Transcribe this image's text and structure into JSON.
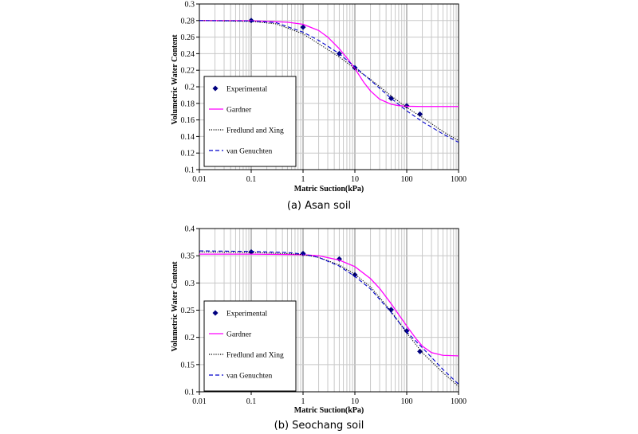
{
  "chart_data": [
    {
      "type": "line",
      "caption": "(a) Asan soil",
      "xlabel": "Matric Suction(kPa)",
      "ylabel": "Volumetric Water Content",
      "xscale": "log",
      "xlim": [
        0.01,
        1000
      ],
      "ylim": [
        0.1,
        0.3
      ],
      "xticks": [
        "0.01",
        "0.1",
        "1",
        "10",
        "100",
        "1000"
      ],
      "yticks": [
        "0.1",
        "0.12",
        "0.14",
        "0.16",
        "0.18",
        "0.2",
        "0.22",
        "0.24",
        "0.26",
        "0.28",
        "0.3"
      ],
      "grid": true,
      "legend_position": "lower-left",
      "series": [
        {
          "name": "Experimental",
          "style": "markers",
          "color": "#00007f",
          "x": [
            0.1,
            1,
            5,
            10,
            50,
            100,
            180
          ],
          "y": [
            0.28,
            0.272,
            0.24,
            0.223,
            0.186,
            0.177,
            0.167
          ]
        },
        {
          "name": "Gardner",
          "style": "solid",
          "color": "#ff00ff",
          "x": [
            0.01,
            0.1,
            0.5,
            1,
            2,
            3,
            5,
            7,
            10,
            15,
            20,
            30,
            50,
            70,
            100,
            200,
            1000
          ],
          "y": [
            0.28,
            0.2798,
            0.278,
            0.2755,
            0.268,
            0.26,
            0.246,
            0.235,
            0.222,
            0.205,
            0.195,
            0.185,
            0.179,
            0.1772,
            0.1765,
            0.1762,
            0.1762
          ]
        },
        {
          "name": "Fredlund and Xing",
          "style": "dotted",
          "color": "#000000",
          "x": [
            0.01,
            0.1,
            0.3,
            1,
            2,
            3,
            5,
            10,
            20,
            50,
            100,
            200,
            500,
            1000
          ],
          "y": [
            0.28,
            0.279,
            0.276,
            0.264,
            0.252,
            0.245,
            0.236,
            0.222,
            0.209,
            0.189,
            0.175,
            0.163,
            0.146,
            0.135
          ]
        },
        {
          "name": "van Genuchten",
          "style": "dashed",
          "color": "#0000cc",
          "x": [
            0.01,
            0.1,
            0.3,
            1,
            2,
            3,
            5,
            10,
            20,
            50,
            100,
            200,
            500,
            1000
          ],
          "y": [
            0.28,
            0.2795,
            0.2775,
            0.266,
            0.256,
            0.249,
            0.24,
            0.224,
            0.208,
            0.186,
            0.171,
            0.158,
            0.143,
            0.133
          ]
        }
      ]
    },
    {
      "type": "line",
      "caption": "(b) Seochang soil",
      "xlabel": "Matric Suction(kPa)",
      "ylabel": "Volumetric Water Content",
      "xscale": "log",
      "xlim": [
        0.01,
        1000
      ],
      "ylim": [
        0.1,
        0.4
      ],
      "xticks": [
        "0.01",
        "0.1",
        "1",
        "10",
        "100",
        "1000"
      ],
      "yticks": [
        "0.1",
        "0.15",
        "0.2",
        "0.25",
        "0.3",
        "0.35",
        "0.4"
      ],
      "grid": true,
      "legend_position": "lower-left",
      "series": [
        {
          "name": "Experimental",
          "style": "markers",
          "color": "#00007f",
          "x": [
            0.1,
            1,
            5,
            10,
            50,
            100,
            180
          ],
          "y": [
            0.357,
            0.354,
            0.344,
            0.315,
            0.251,
            0.212,
            0.174
          ]
        },
        {
          "name": "Gardner",
          "style": "solid",
          "color": "#ff00ff",
          "x": [
            0.01,
            0.1,
            1,
            2,
            5,
            10,
            20,
            30,
            50,
            70,
            100,
            150,
            200,
            300,
            500,
            1000
          ],
          "y": [
            0.353,
            0.353,
            0.352,
            0.35,
            0.342,
            0.33,
            0.308,
            0.29,
            0.262,
            0.242,
            0.221,
            0.198,
            0.184,
            0.172,
            0.167,
            0.166
          ]
        },
        {
          "name": "Fredlund and Xing",
          "style": "dotted",
          "color": "#000000",
          "x": [
            0.01,
            0.1,
            0.5,
            1,
            2,
            5,
            10,
            20,
            50,
            100,
            200,
            500,
            1000
          ],
          "y": [
            0.357,
            0.356,
            0.354,
            0.352,
            0.347,
            0.333,
            0.316,
            0.293,
            0.248,
            0.208,
            0.172,
            0.135,
            0.11
          ]
        },
        {
          "name": "van Genuchten",
          "style": "dashed",
          "color": "#0000cc",
          "x": [
            0.01,
            0.1,
            0.5,
            1,
            2,
            5,
            10,
            20,
            50,
            100,
            200,
            500,
            1000
          ],
          "y": [
            0.359,
            0.358,
            0.356,
            0.353,
            0.347,
            0.331,
            0.312,
            0.289,
            0.246,
            0.21,
            0.181,
            0.141,
            0.114
          ]
        }
      ]
    }
  ]
}
